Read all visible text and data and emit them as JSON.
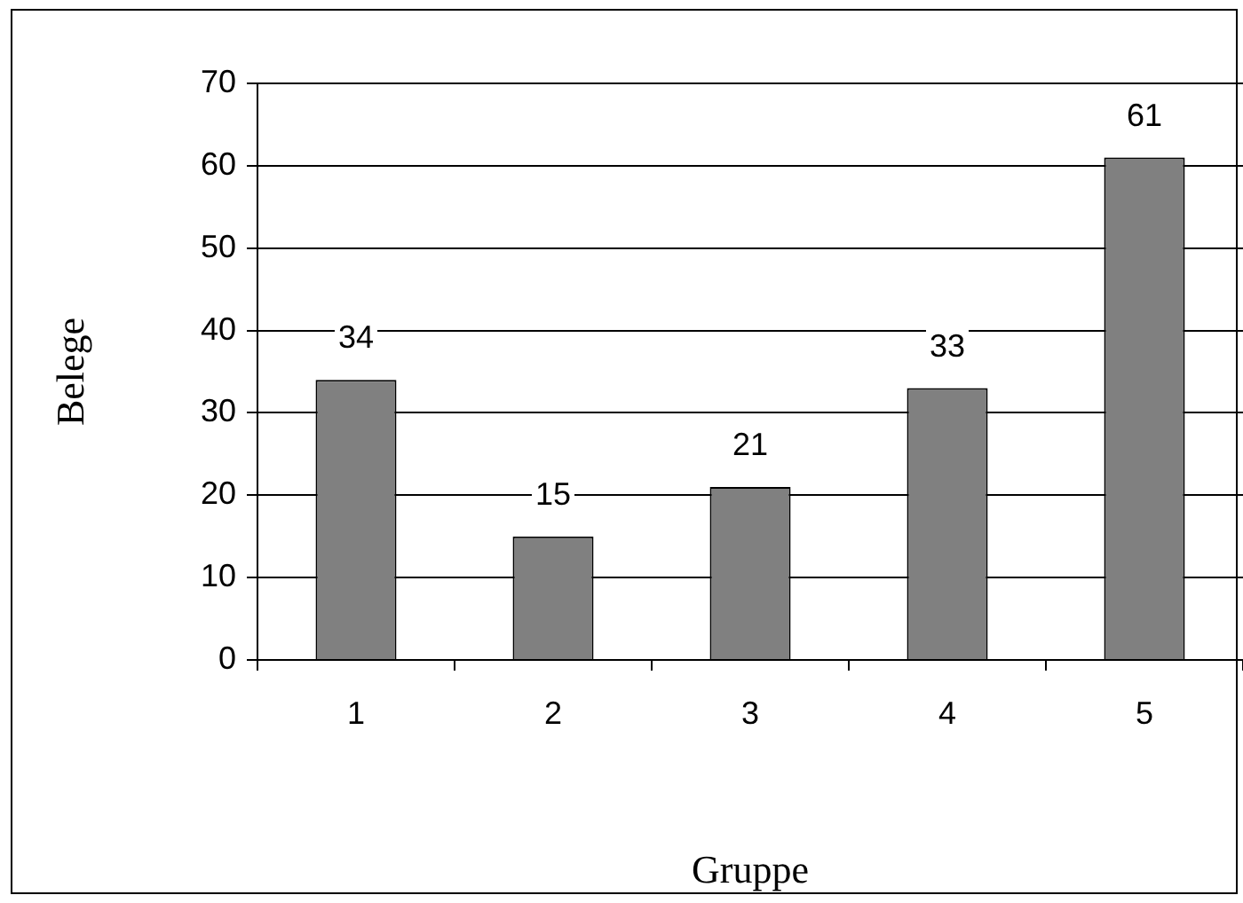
{
  "chart_data": {
    "type": "bar",
    "xlabel": "Gruppe",
    "ylabel": "Belege",
    "categories": [
      "1",
      "2",
      "3",
      "4",
      "5"
    ],
    "values": [
      34,
      15,
      21,
      33,
      61
    ],
    "color": "#808080",
    "ylim": [
      0,
      70
    ],
    "yticks": [
      0,
      10,
      20,
      30,
      40,
      50,
      60,
      70
    ],
    "grid": "y",
    "data_labels": true,
    "legend": false
  }
}
